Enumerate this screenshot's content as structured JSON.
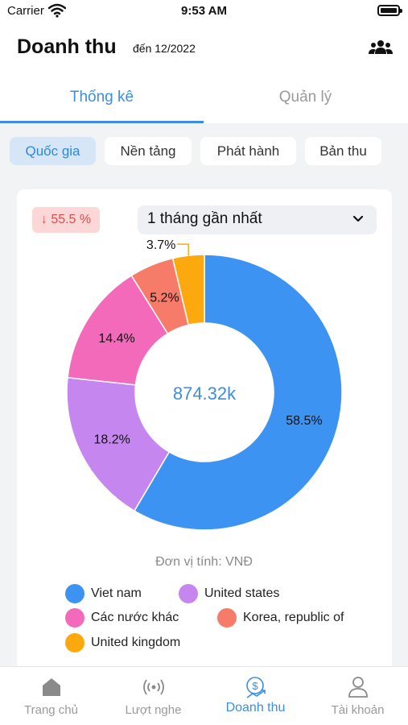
{
  "status_bar": {
    "carrier": "Carrier",
    "time": "9:53 AM"
  },
  "header": {
    "title": "Doanh thu",
    "subtitle": "đến 12/2022"
  },
  "tabs": [
    {
      "label": "Thống kê",
      "active": true
    },
    {
      "label": "Quản lý",
      "active": false
    }
  ],
  "filters": [
    {
      "label": "Quốc gia",
      "active": true
    },
    {
      "label": "Nền tảng",
      "active": false
    },
    {
      "label": "Phát hành",
      "active": false
    },
    {
      "label": "Bản thu",
      "active": false
    }
  ],
  "card": {
    "change_badge": "55.5 %",
    "change_direction": "down",
    "period_select": "1 tháng gần nhất",
    "total": "874.32k",
    "unit": "Đơn vị tính: VNĐ"
  },
  "chart_data": {
    "type": "pie",
    "donut": true,
    "center_label": "874.32k",
    "series": [
      {
        "name": "Viet nam",
        "value": 58.5,
        "label": "58.5%",
        "color": "#3d93f2"
      },
      {
        "name": "United states",
        "value": 18.2,
        "label": "18.2%",
        "color": "#c587ef"
      },
      {
        "name": "Các nước khác",
        "value": 14.4,
        "label": "14.4%",
        "color": "#f46aba"
      },
      {
        "name": "Korea, republic of",
        "value": 5.2,
        "label": "5.2%",
        "color": "#f77b69"
      },
      {
        "name": "United kingdom",
        "value": 3.7,
        "label": "3.7%",
        "color": "#fba90f"
      }
    ],
    "legend_placement": "bottom"
  },
  "tabbar": [
    {
      "label": "Trang chủ",
      "icon": "home-icon",
      "active": false
    },
    {
      "label": "Lượt nghe",
      "icon": "broadcast-icon",
      "active": false
    },
    {
      "label": "Doanh thu",
      "icon": "revenue-icon",
      "active": true
    },
    {
      "label": "Tài khoản",
      "icon": "user-icon",
      "active": false
    }
  ],
  "colors": {
    "accent": "#3d8ee3",
    "negative": "#e24c4c"
  }
}
